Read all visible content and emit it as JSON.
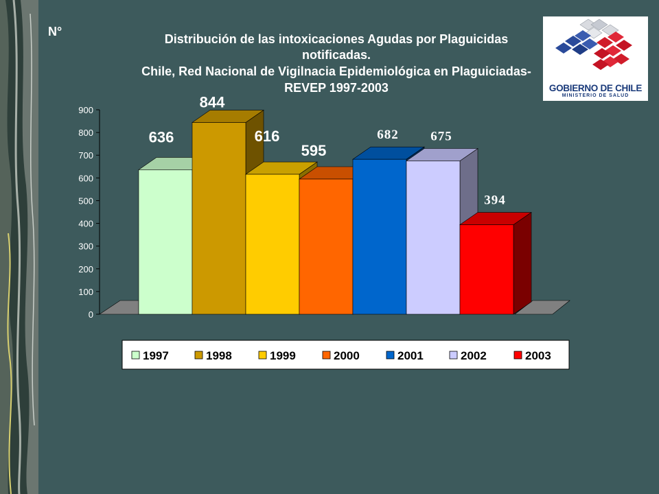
{
  "slide": {
    "y_axis_symbol": "N°",
    "title_lines": [
      "Distribución de las intoxicaciones Agudas por Plaguicidas",
      "notificadas.",
      "Chile, Red  Nacional de Vigilnacia Epidemiológica en Plaguiciadas-",
      "REVEP 1997-2003"
    ],
    "logo": {
      "main_text": "GOBIERNO DE CHILE",
      "sub_text": "MINISTERIO DE SALUD"
    }
  },
  "chart_data": {
    "type": "bar",
    "title": "Distribución de las intoxicaciones Agudas por Plaguicidas notificadas. Chile, Red  Nacional de Vigilnacia Epidemiológica en Plaguiciadas- REVEP 1997-2003",
    "ylabel": "N°",
    "xlabel": "",
    "ylim": [
      0,
      900
    ],
    "yticks": [
      "0",
      "100",
      "200",
      "300",
      "400",
      "500",
      "600",
      "700",
      "800",
      "900"
    ],
    "legend_position": "bottom",
    "grid": false,
    "three_d": true,
    "series": [
      {
        "name": "1997",
        "value": 636,
        "label": "636",
        "color": "#ccffcc",
        "top": "#a6d1a6",
        "side": "#8aa88a",
        "label_style": "sans"
      },
      {
        "name": "1998",
        "value": 844,
        "label": "844",
        "color": "#cc9900",
        "top": "#a67c00",
        "side": "#6e5200",
        "label_style": "sans"
      },
      {
        "name": "1999",
        "value": 616,
        "label": "616",
        "color": "#ffcc00",
        "top": "#c9a000",
        "side": "#8a6e00",
        "label_style": "sans"
      },
      {
        "name": "2000",
        "value": 595,
        "label": "595",
        "color": "#ff6600",
        "top": "#c94f00",
        "side": "#8a3600",
        "label_style": "sans"
      },
      {
        "name": "2001",
        "value": 682,
        "label": "682",
        "color": "#0066cc",
        "top": "#004f9e",
        "side": "#003366",
        "label_style": "serif"
      },
      {
        "name": "2002",
        "value": 675,
        "label": "675",
        "color": "#ccccff",
        "top": "#a0a0cc",
        "side": "#6e6e8a",
        "label_style": "serif"
      },
      {
        "name": "2003",
        "value": 394,
        "label": "394",
        "color": "#ff0000",
        "top": "#c90000",
        "side": "#7a0000",
        "label_style": "serif"
      }
    ]
  }
}
